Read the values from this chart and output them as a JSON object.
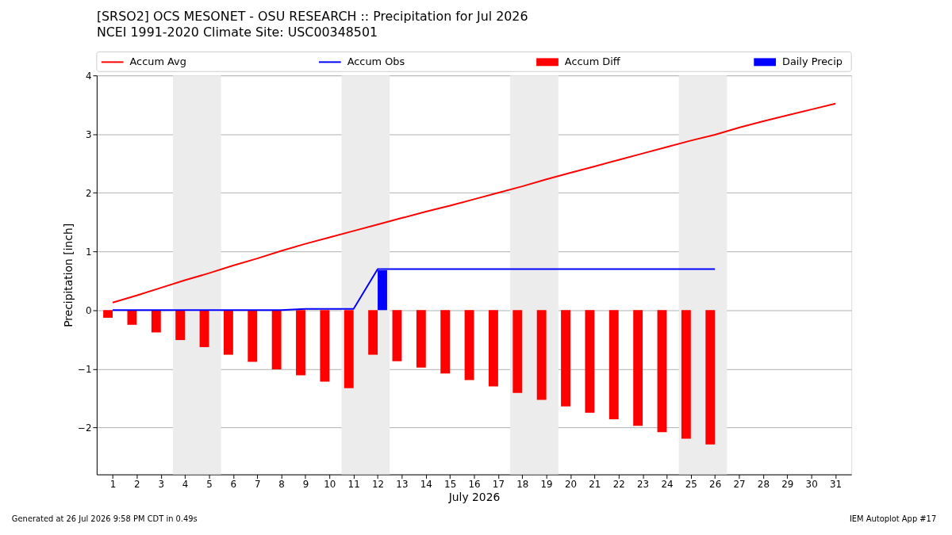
{
  "chart_data": {
    "type": "line",
    "title": "[SRSO2] OCS MESONET - OSU RESEARCH :: Precipitation for Jul 2026",
    "subtitle": "NCEI 1991-2020 Climate Site: USC00348501",
    "xlabel": "July 2026",
    "ylabel": "Precipitation [inch]",
    "x": [
      1,
      2,
      3,
      4,
      5,
      6,
      7,
      8,
      9,
      10,
      11,
      12,
      13,
      14,
      15,
      16,
      17,
      18,
      19,
      20,
      21,
      22,
      23,
      24,
      25,
      26,
      27,
      28,
      29,
      30,
      31
    ],
    "series": [
      {
        "name": "Accum Avg",
        "color": "#ff0000",
        "values": [
          0.13,
          0.25,
          0.38,
          0.51,
          0.63,
          0.76,
          0.88,
          1.01,
          1.13,
          1.24,
          1.35,
          1.46,
          1.57,
          1.68,
          1.78,
          1.89,
          2.0,
          2.11,
          2.23,
          2.34,
          2.45,
          2.56,
          2.67,
          2.78,
          2.89,
          2.99,
          3.11,
          3.22,
          3.32,
          3.42,
          3.52
        ]
      },
      {
        "name": "Accum Obs",
        "color": "#0000ff",
        "values": [
          0,
          0,
          0,
          0,
          0,
          0,
          0,
          0,
          0.02,
          0.02,
          0.02,
          0.7,
          0.7,
          0.7,
          0.7,
          0.7,
          0.7,
          0.7,
          0.7,
          0.7,
          0.7,
          0.7,
          0.7,
          0.7,
          0.7,
          0.7,
          null,
          null,
          null,
          null,
          null
        ]
      },
      {
        "name": "Accum Diff",
        "type": "bar",
        "color": "#ff0000",
        "values": [
          -0.13,
          -0.25,
          -0.38,
          -0.51,
          -0.63,
          -0.76,
          -0.88,
          -1.01,
          -1.11,
          -1.22,
          -1.33,
          -0.76,
          -0.87,
          -0.98,
          -1.08,
          -1.19,
          -1.3,
          -1.41,
          -1.53,
          -1.64,
          -1.75,
          -1.86,
          -1.97,
          -2.08,
          -2.19,
          -2.29,
          null,
          null,
          null,
          null,
          null
        ]
      },
      {
        "name": "Daily Precip",
        "type": "bar",
        "color": "#0000ff",
        "values": [
          null,
          null,
          null,
          null,
          null,
          null,
          null,
          null,
          null,
          null,
          null,
          0.68,
          null,
          null,
          null,
          null,
          null,
          null,
          null,
          null,
          null,
          null,
          null,
          null,
          null,
          null,
          null,
          null,
          null,
          null,
          null
        ]
      }
    ],
    "xlim": [
      0.5,
      31.5
    ],
    "xticks": [
      1,
      2,
      3,
      4,
      5,
      6,
      7,
      8,
      9,
      10,
      11,
      12,
      13,
      14,
      15,
      16,
      17,
      18,
      19,
      20,
      21,
      22,
      23,
      24,
      25,
      26,
      27,
      28,
      29,
      30,
      31
    ],
    "ylim": [
      -2.8,
      4
    ],
    "yticks": [
      -2,
      -1,
      0,
      1,
      2,
      3,
      4
    ],
    "bands": [
      {
        "axis": "x",
        "from": 3.5,
        "to": 5.5,
        "color": "#ececec"
      },
      {
        "axis": "x",
        "from": 10.5,
        "to": 12.5,
        "color": "#ececec"
      },
      {
        "axis": "x",
        "from": 17.5,
        "to": 19.5,
        "color": "#ececec"
      },
      {
        "axis": "x",
        "from": 24.5,
        "to": 26.5,
        "color": "#ececec"
      }
    ],
    "grid": "y",
    "legend": "top",
    "annotations": [
      "Generated at 26 Jul 2026 9:58 PM CDT in 0.49s",
      "IEM Autoplot App #17"
    ]
  }
}
